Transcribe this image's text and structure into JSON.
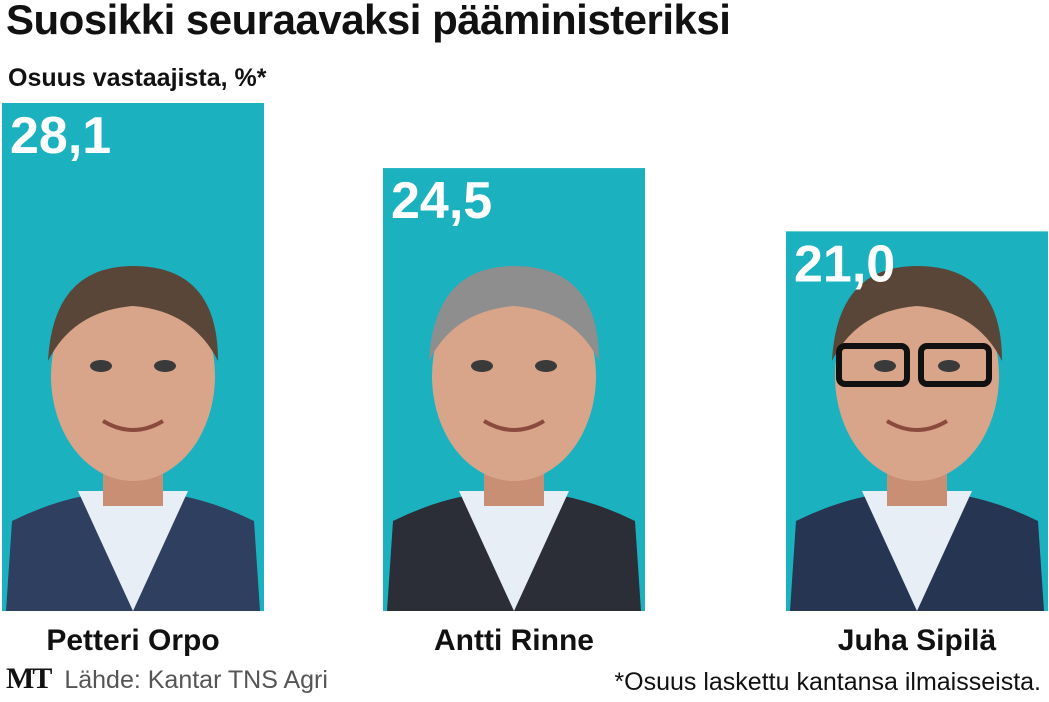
{
  "chart_data": {
    "type": "bar",
    "title": "Suosikki seuraavaksi pääministeriksi",
    "subtitle": "Osuus vastaajista, %*",
    "categories": [
      "Petteri Orpo",
      "Antti Rinne",
      "Juha Sipilä"
    ],
    "values": [
      28.1,
      24.5,
      21.0
    ],
    "value_labels": [
      "28,1",
      "24,5",
      "21,0"
    ],
    "ylim": [
      0,
      28.1
    ],
    "grid": false,
    "bar_color": "#1bb1bf"
  },
  "footer": {
    "logo": "MT",
    "source": "Lähde: Kantar TNS Agri",
    "footnote": "*Osuus laskettu kantansa ilmaisseista."
  }
}
